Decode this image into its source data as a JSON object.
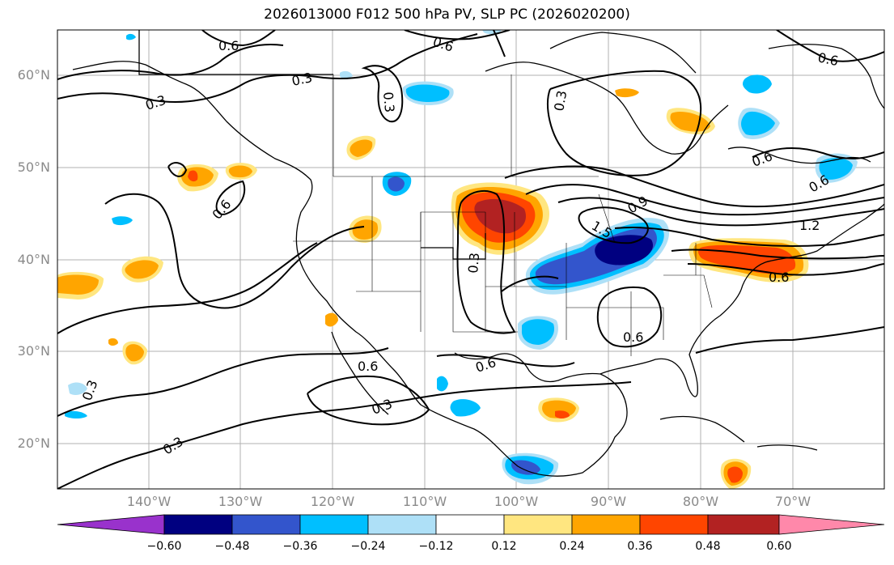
{
  "title": "2026013000 F012 500 hPa PV, SLP PC (2026020200)",
  "map": {
    "lat_labels": [
      "60°N",
      "50°N",
      "40°N",
      "30°N",
      "20°N"
    ],
    "lon_labels": [
      "140°W",
      "130°W",
      "120°W",
      "110°W",
      "100°W",
      "90°W",
      "80°W",
      "70°W"
    ],
    "contour_labels": [
      "0.6",
      "0.6",
      "0.6",
      "0.3",
      "0.3",
      "0.3",
      "0.3",
      "0.6",
      "0.3",
      "1.5",
      "0.9",
      "1.2",
      "0.6",
      "0.6",
      "0.6",
      "0.6",
      "0.3",
      "0.3",
      "0.6",
      "0.3",
      "0.6"
    ]
  },
  "colorbar": {
    "ticks": [
      "−0.60",
      "−0.48",
      "−0.36",
      "−0.24",
      "−0.12",
      "0.12",
      "0.24",
      "0.36",
      "0.48",
      "0.60"
    ],
    "colors": [
      "#9932cc",
      "#000080",
      "#3355cc",
      "#00bfff",
      "#aee0f7",
      "#ffffff",
      "#ffe680",
      "#ffa500",
      "#ff4500",
      "#b22222",
      "#ff88aa"
    ]
  }
}
